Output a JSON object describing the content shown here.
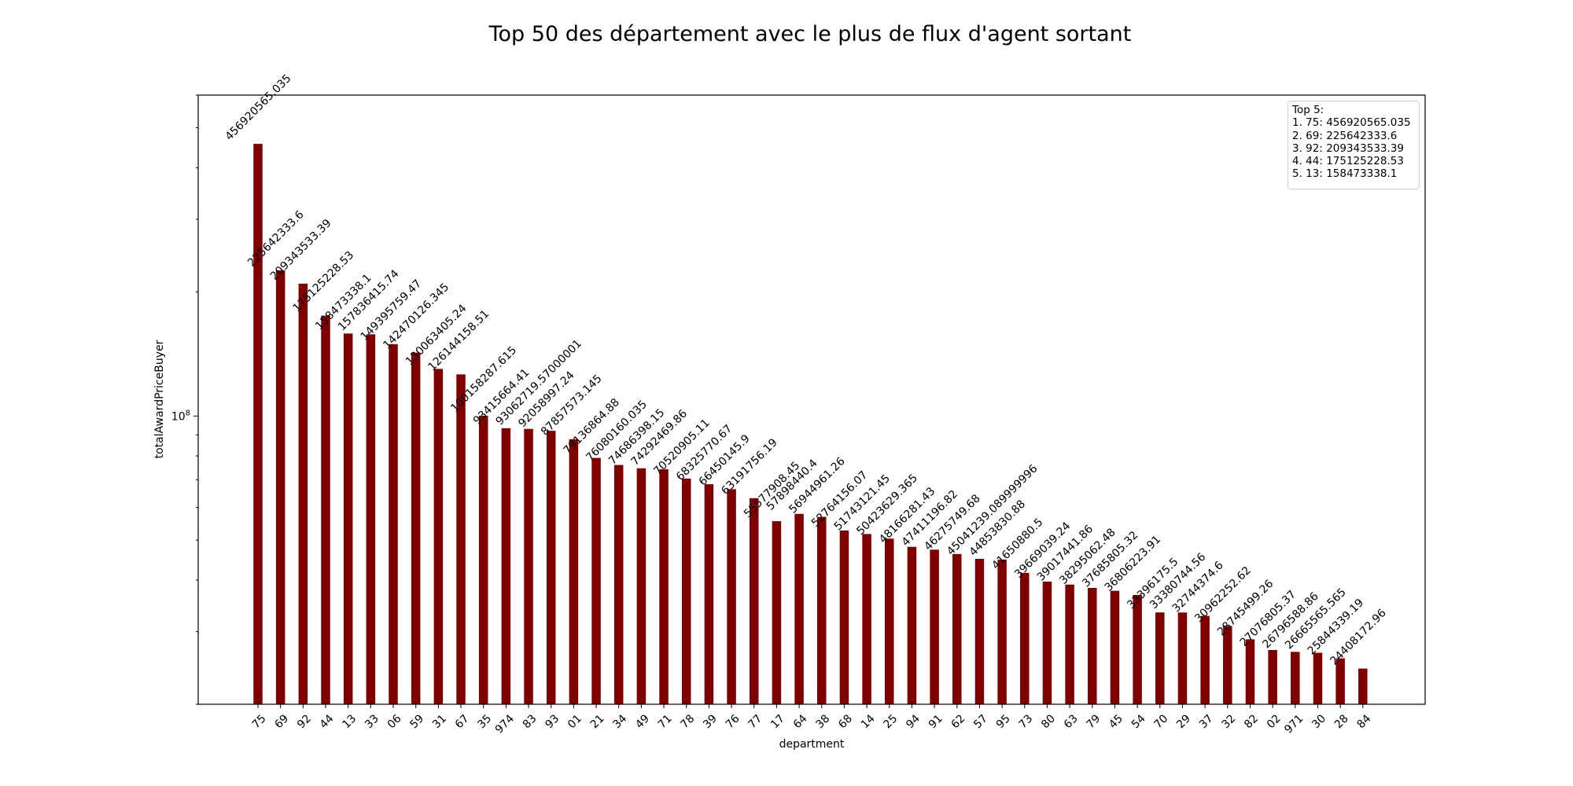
{
  "chart_data": {
    "type": "bar",
    "title": "Top 50 des département avec le plus de flux d'agent sortant",
    "xlabel": "department",
    "ylabel": "totalAwardPriceBuyer",
    "yscale": "log",
    "ylim": [
      20000000,
      600000000
    ],
    "yticks": [
      {
        "value": 100000000,
        "label": "10^8"
      }
    ],
    "bar_color": "#800000",
    "categories": [
      "75",
      "69",
      "92",
      "44",
      "13",
      "33",
      "06",
      "59",
      "31",
      "67",
      "35",
      "974",
      "83",
      "93",
      "01",
      "21",
      "34",
      "49",
      "71",
      "78",
      "39",
      "76",
      "77",
      "17",
      "64",
      "38",
      "68",
      "14",
      "25",
      "94",
      "91",
      "62",
      "57",
      "95",
      "73",
      "80",
      "63",
      "79",
      "45",
      "54",
      "70",
      "29",
      "37",
      "32",
      "82",
      "02",
      "971",
      "30",
      "28",
      "84"
    ],
    "values": [
      456920565.035,
      225642333.6,
      209343533.39,
      175125228.53,
      158473338.1,
      157836415.74,
      149395759.47,
      142470126.345,
      130063405.24,
      126144158.51,
      100158287.615,
      93415664.41,
      93062719.57000001,
      92058997.24,
      87857573.145,
      79136864.88,
      76080160.035,
      74686398.15,
      74292469.86,
      70520905.11,
      68325770.67,
      66450145.9,
      63191756.19,
      55577908.45,
      57898440.4,
      56944961.26,
      52764156.07,
      51743121.45,
      50423629.365,
      48166281.43,
      47411196.82,
      46275749.68,
      45041239.089999996,
      44853830.88,
      41650880.5,
      39669039.24,
      39017441.86,
      38295062.48,
      37685805.32,
      36806223.91,
      33396175.5,
      33380744.56,
      32744374.6,
      30962252.62,
      28745499.26,
      27076805.37,
      26796588.86,
      26665565.565,
      25844339.19,
      24408172.96
    ],
    "labels": [
      "456920565.035",
      "225642333.6",
      "209343533.39",
      "175125228.53",
      "158473338.1",
      "157836415.74",
      "149395759.47",
      "142470126.345",
      "130063405.24",
      "126144158.51",
      "100158287.615",
      "93415664.41",
      "93062719.57000001",
      "92058997.24",
      "87857573.145",
      "79136864.88",
      "76080160.035",
      "74686398.15",
      "74292469.86",
      "70520905.11",
      "68325770.67",
      "66450145.9",
      "63191756.19",
      "55577908.45",
      "57898440.4",
      "56944961.26",
      "52764156.07",
      "51743121.45",
      "50423629.365",
      "48166281.43",
      "47411196.82",
      "46275749.68",
      "45041239.089999996",
      "44853830.88",
      "41650880.5",
      "39669039.24",
      "39017441.86",
      "38295062.48",
      "37685805.32",
      "36806223.91",
      "33396175.5",
      "33380744.56",
      "32744374.6",
      "30962252.62",
      "28745499.26",
      "27076805.37",
      "26796588.86",
      "26665565.565",
      "25844339.19",
      "24408172.96"
    ],
    "legend": {
      "position": "top-right",
      "title": "Top 5:",
      "entries": [
        "1. 75: 456920565.035",
        "2. 69: 225642333.6",
        "3. 92: 209343533.39",
        "4. 44: 175125228.53",
        "5. 13: 158473338.1"
      ]
    },
    "grid": false
  }
}
